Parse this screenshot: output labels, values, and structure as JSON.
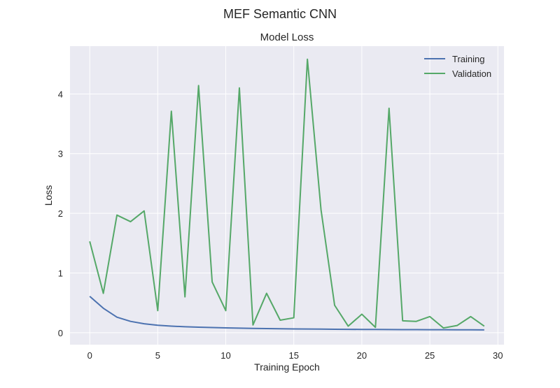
{
  "suptitle": "MEF Semantic CNN",
  "chart_data": {
    "type": "line",
    "title": "Model Loss",
    "xlabel": "Training Epoch",
    "ylabel": "Loss",
    "xlim": [
      -1.45,
      30.45
    ],
    "ylim": [
      -0.2,
      4.8
    ],
    "xticks": [
      0,
      5,
      10,
      15,
      20,
      25,
      30
    ],
    "yticks": [
      0,
      1,
      2,
      3,
      4
    ],
    "grid": true,
    "background": "#eaeaf2",
    "legend_position": "top-right",
    "x": [
      0,
      1,
      2,
      3,
      4,
      5,
      6,
      7,
      8,
      9,
      10,
      11,
      12,
      13,
      14,
      15,
      16,
      17,
      18,
      19,
      20,
      21,
      22,
      23,
      24,
      25,
      26,
      27,
      28,
      29
    ],
    "series": [
      {
        "name": "Training",
        "color": "#4c72b0",
        "values": [
          0.61,
          0.41,
          0.26,
          0.19,
          0.15,
          0.125,
          0.11,
          0.1,
          0.093,
          0.087,
          0.081,
          0.076,
          0.072,
          0.069,
          0.066,
          0.064,
          0.062,
          0.06,
          0.058,
          0.056,
          0.055,
          0.054,
          0.053,
          0.052,
          0.051,
          0.05,
          0.05,
          0.049,
          0.049,
          0.048
        ]
      },
      {
        "name": "Validation",
        "color": "#55a868",
        "values": [
          1.53,
          0.66,
          1.97,
          1.86,
          2.04,
          0.37,
          3.71,
          0.6,
          4.14,
          0.85,
          0.37,
          4.1,
          0.13,
          0.66,
          0.21,
          0.25,
          4.58,
          2.06,
          0.46,
          0.11,
          0.31,
          0.09,
          3.76,
          0.2,
          0.19,
          0.27,
          0.08,
          0.12,
          0.27,
          0.11
        ]
      }
    ]
  }
}
